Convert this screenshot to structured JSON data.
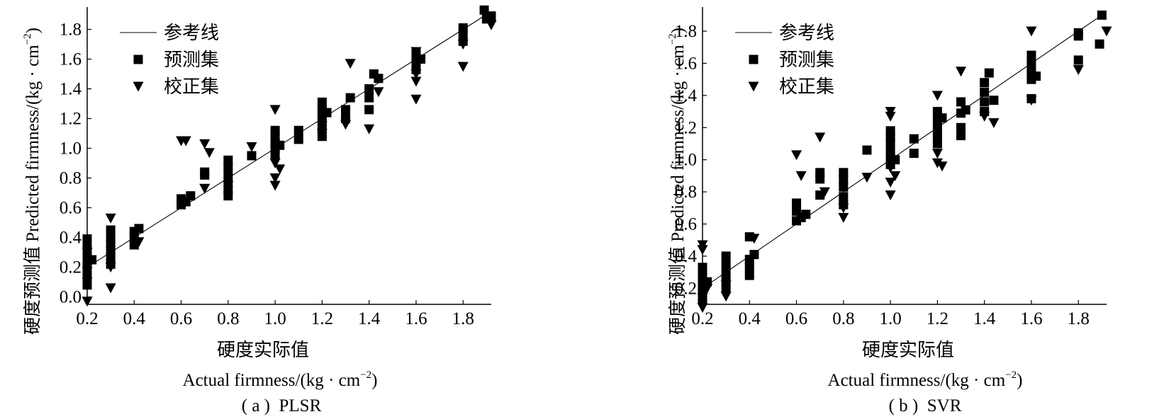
{
  "figure": {
    "panels": [
      {
        "caption": "( a )  PLSR",
        "xlabel_cn": "硬度实际值",
        "xlabel_en": "Actual firmness/(kg · cm",
        "ylabel": "硬度预测值 Predicted firmness/(kg · cm",
        "unit_exp": "−2",
        "ylabel_close": ")",
        "xlabel_close": ")"
      },
      {
        "caption": "( b )  SVR",
        "xlabel_cn": "硬度实际值",
        "xlabel_en": "Actual firmness/(kg · cm",
        "ylabel": "硬度预测值 Predicted firmness/(kg · cm",
        "unit_exp": "−2",
        "ylabel_close": ")",
        "xlabel_close": ")"
      }
    ]
  },
  "chart_data": [
    {
      "type": "scatter",
      "title": "",
      "caption": "( a )  PLSR",
      "xlim": [
        0.2,
        1.92
      ],
      "ylim": [
        -0.05,
        1.95
      ],
      "xticks": [
        "0.2",
        "0.4",
        "0.6",
        "0.8",
        "1.0",
        "1.2",
        "1.4",
        "1.6",
        "1.8"
      ],
      "xtick_values": [
        0.2,
        0.4,
        0.6,
        0.8,
        1.0,
        1.2,
        1.4,
        1.6,
        1.8
      ],
      "yticks": [
        "0.0",
        "0.2",
        "0.4",
        "0.6",
        "0.8",
        "1.0",
        "1.2",
        "1.4",
        "1.6",
        "1.8"
      ],
      "ytick_values": [
        0.0,
        0.2,
        0.4,
        0.6,
        0.8,
        1.0,
        1.2,
        1.4,
        1.6,
        1.8
      ],
      "legend": {
        "placement": "top-left",
        "entries": [
          "参考线",
          "预测集",
          "校正集"
        ]
      },
      "reference_line": {
        "name": "参考线",
        "from": [
          0.2,
          0.2
        ],
        "to": [
          1.9,
          1.9
        ]
      },
      "series": [
        {
          "name": "预测集",
          "marker": "square",
          "points": [
            [
              0.2,
              0.08
            ],
            [
              0.2,
              0.12
            ],
            [
              0.2,
              0.16
            ],
            [
              0.2,
              0.2
            ],
            [
              0.2,
              0.24
            ],
            [
              0.2,
              0.29
            ],
            [
              0.2,
              0.35
            ],
            [
              0.2,
              0.39
            ],
            [
              0.22,
              0.25
            ],
            [
              0.3,
              0.22
            ],
            [
              0.3,
              0.27
            ],
            [
              0.3,
              0.31
            ],
            [
              0.3,
              0.36
            ],
            [
              0.3,
              0.4
            ],
            [
              0.3,
              0.45
            ],
            [
              0.4,
              0.35
            ],
            [
              0.4,
              0.4
            ],
            [
              0.4,
              0.44
            ],
            [
              0.42,
              0.46
            ],
            [
              0.6,
              0.62
            ],
            [
              0.6,
              0.66
            ],
            [
              0.62,
              0.64
            ],
            [
              0.64,
              0.68
            ],
            [
              0.7,
              0.82
            ],
            [
              0.7,
              0.84
            ],
            [
              0.8,
              0.68
            ],
            [
              0.8,
              0.72
            ],
            [
              0.8,
              0.77
            ],
            [
              0.8,
              0.83
            ],
            [
              0.8,
              0.88
            ],
            [
              0.8,
              0.92
            ],
            [
              0.9,
              0.95
            ],
            [
              1.0,
              0.96
            ],
            [
              1.0,
              1.0
            ],
            [
              1.0,
              1.04
            ],
            [
              1.0,
              1.08
            ],
            [
              1.0,
              1.12
            ],
            [
              1.02,
              1.02
            ],
            [
              1.1,
              1.06
            ],
            [
              1.1,
              1.12
            ],
            [
              1.2,
              1.08
            ],
            [
              1.2,
              1.13
            ],
            [
              1.2,
              1.18
            ],
            [
              1.2,
              1.22
            ],
            [
              1.2,
              1.27
            ],
            [
              1.2,
              1.31
            ],
            [
              1.22,
              1.24
            ],
            [
              1.3,
              1.2
            ],
            [
              1.3,
              1.26
            ],
            [
              1.32,
              1.34
            ],
            [
              1.4,
              1.26
            ],
            [
              1.4,
              1.34
            ],
            [
              1.4,
              1.4
            ],
            [
              1.42,
              1.5
            ],
            [
              1.44,
              1.47
            ],
            [
              1.6,
              1.53
            ],
            [
              1.6,
              1.58
            ],
            [
              1.6,
              1.64
            ],
            [
              1.62,
              1.6
            ],
            [
              1.8,
              1.72
            ],
            [
              1.8,
              1.77
            ],
            [
              1.8,
              1.81
            ],
            [
              1.89,
              1.93
            ],
            [
              1.9,
              1.87
            ],
            [
              1.92,
              1.89
            ]
          ]
        },
        {
          "name": "校正集",
          "marker": "triangle-down",
          "points": [
            [
              0.2,
              -0.03
            ],
            [
              0.2,
              0.1
            ],
            [
              0.2,
              0.17
            ],
            [
              0.2,
              0.3
            ],
            [
              0.3,
              0.06
            ],
            [
              0.3,
              0.2
            ],
            [
              0.3,
              0.53
            ],
            [
              0.42,
              0.37
            ],
            [
              0.6,
              1.05
            ],
            [
              0.62,
              1.05
            ],
            [
              0.7,
              1.03
            ],
            [
              0.7,
              0.73
            ],
            [
              0.72,
              0.97
            ],
            [
              0.8,
              0.75
            ],
            [
              0.9,
              1.01
            ],
            [
              1.0,
              0.75
            ],
            [
              1.0,
              0.8
            ],
            [
              1.0,
              0.9
            ],
            [
              1.0,
              1.26
            ],
            [
              1.02,
              0.86
            ],
            [
              1.2,
              1.1
            ],
            [
              1.2,
              1.15
            ],
            [
              1.3,
              1.16
            ],
            [
              1.32,
              1.57
            ],
            [
              1.4,
              1.13
            ],
            [
              1.44,
              1.38
            ],
            [
              1.6,
              1.33
            ],
            [
              1.6,
              1.45
            ],
            [
              1.6,
              1.5
            ],
            [
              1.6,
              1.65
            ],
            [
              1.8,
              1.55
            ],
            [
              1.8,
              1.7
            ],
            [
              1.92,
              1.83
            ]
          ]
        }
      ]
    },
    {
      "type": "scatter",
      "title": "",
      "caption": "( b )  SVR",
      "xlim": [
        0.2,
        1.92
      ],
      "ylim": [
        0.1,
        1.95
      ],
      "xticks": [
        "0.2",
        "0.4",
        "0.6",
        "0.8",
        "1.0",
        "1.2",
        "1.4",
        "1.6",
        "1.8"
      ],
      "xtick_values": [
        0.2,
        0.4,
        0.6,
        0.8,
        1.0,
        1.2,
        1.4,
        1.6,
        1.8
      ],
      "yticks": [
        "0.2",
        "0.4",
        "0.6",
        "0.8",
        "1.0",
        "1.2",
        "1.4",
        "1.6",
        "1.8"
      ],
      "ytick_values": [
        0.2,
        0.4,
        0.6,
        0.8,
        1.0,
        1.2,
        1.4,
        1.6,
        1.8
      ],
      "legend": {
        "placement": "top-left",
        "entries": [
          "参考线",
          "预测集",
          "校正集"
        ]
      },
      "reference_line": {
        "name": "参考线",
        "from": [
          0.2,
          0.2
        ],
        "to": [
          1.9,
          1.9
        ]
      },
      "series": [
        {
          "name": "预测集",
          "marker": "square",
          "points": [
            [
              0.2,
              0.13
            ],
            [
              0.2,
              0.18
            ],
            [
              0.2,
              0.23
            ],
            [
              0.2,
              0.28
            ],
            [
              0.2,
              0.33
            ],
            [
              0.22,
              0.24
            ],
            [
              0.3,
              0.2
            ],
            [
              0.3,
              0.25
            ],
            [
              0.3,
              0.3
            ],
            [
              0.3,
              0.35
            ],
            [
              0.3,
              0.4
            ],
            [
              0.4,
              0.28
            ],
            [
              0.4,
              0.33
            ],
            [
              0.4,
              0.38
            ],
            [
              0.42,
              0.41
            ],
            [
              0.4,
              0.52
            ],
            [
              0.6,
              0.62
            ],
            [
              0.6,
              0.68
            ],
            [
              0.6,
              0.73
            ],
            [
              0.62,
              0.64
            ],
            [
              0.64,
              0.66
            ],
            [
              0.7,
              0.78
            ],
            [
              0.7,
              0.88
            ],
            [
              0.7,
              0.92
            ],
            [
              0.8,
              0.72
            ],
            [
              0.8,
              0.77
            ],
            [
              0.8,
              0.83
            ],
            [
              0.8,
              0.88
            ],
            [
              0.8,
              0.92
            ],
            [
              0.9,
              1.06
            ],
            [
              1.0,
              0.97
            ],
            [
              1.0,
              1.01
            ],
            [
              1.0,
              1.05
            ],
            [
              1.0,
              1.1
            ],
            [
              1.0,
              1.14
            ],
            [
              1.0,
              1.18
            ],
            [
              1.02,
              1.0
            ],
            [
              1.1,
              1.04
            ],
            [
              1.1,
              1.13
            ],
            [
              1.2,
              1.1
            ],
            [
              1.2,
              1.15
            ],
            [
              1.2,
              1.2
            ],
            [
              1.2,
              1.25
            ],
            [
              1.2,
              1.3
            ],
            [
              1.22,
              1.26
            ],
            [
              1.3,
              1.15
            ],
            [
              1.3,
              1.2
            ],
            [
              1.3,
              1.29
            ],
            [
              1.3,
              1.36
            ],
            [
              1.32,
              1.31
            ],
            [
              1.4,
              1.3
            ],
            [
              1.4,
              1.36
            ],
            [
              1.4,
              1.42
            ],
            [
              1.4,
              1.48
            ],
            [
              1.42,
              1.54
            ],
            [
              1.44,
              1.37
            ],
            [
              1.6,
              1.38
            ],
            [
              1.6,
              1.5
            ],
            [
              1.6,
              1.55
            ],
            [
              1.6,
              1.6
            ],
            [
              1.6,
              1.65
            ],
            [
              1.62,
              1.52
            ],
            [
              1.8,
              1.62
            ],
            [
              1.8,
              1.77
            ],
            [
              1.8,
              1.79
            ],
            [
              1.89,
              1.72
            ],
            [
              1.9,
              1.9
            ]
          ]
        },
        {
          "name": "校正集",
          "marker": "triangle-down",
          "points": [
            [
              0.2,
              0.08
            ],
            [
              0.2,
              0.14
            ],
            [
              0.2,
              0.44
            ],
            [
              0.2,
              0.47
            ],
            [
              0.22,
              0.2
            ],
            [
              0.3,
              0.15
            ],
            [
              0.3,
              0.22
            ],
            [
              0.42,
              0.51
            ],
            [
              0.6,
              1.03
            ],
            [
              0.62,
              0.9
            ],
            [
              0.7,
              1.14
            ],
            [
              0.72,
              0.8
            ],
            [
              0.8,
              0.64
            ],
            [
              0.8,
              0.7
            ],
            [
              0.9,
              0.89
            ],
            [
              1.0,
              0.78
            ],
            [
              1.0,
              0.86
            ],
            [
              1.0,
              0.95
            ],
            [
              1.0,
              1.27
            ],
            [
              1.0,
              1.3
            ],
            [
              1.02,
              0.9
            ],
            [
              1.2,
              0.98
            ],
            [
              1.2,
              1.04
            ],
            [
              1.2,
              1.4
            ],
            [
              1.22,
              0.96
            ],
            [
              1.3,
              1.55
            ],
            [
              1.4,
              1.27
            ],
            [
              1.44,
              1.23
            ],
            [
              1.6,
              1.37
            ],
            [
              1.6,
              1.8
            ],
            [
              1.8,
              1.56
            ],
            [
              1.92,
              1.8
            ]
          ]
        }
      ]
    }
  ]
}
